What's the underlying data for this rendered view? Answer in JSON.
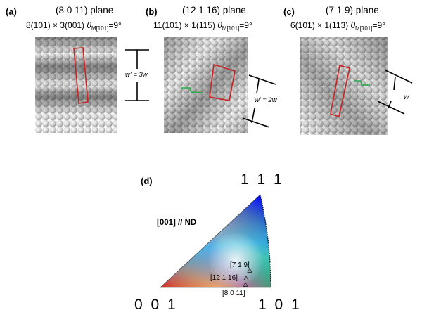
{
  "panels": [
    {
      "letter": "(a)",
      "title": "(8 0 11) plane",
      "eq_prefix": "8(101) × 3(001) ",
      "eq_theta": "θ",
      "eq_sub": "M[101]",
      "eq_angle": "=9°",
      "width_label": "w' = 3w"
    },
    {
      "letter": "(b)",
      "title": "(12 1 16) plane",
      "eq_prefix": "11(101) × 1(115) ",
      "eq_theta": "θ",
      "eq_sub": "M[101]",
      "eq_angle": "=9°",
      "width_label": "w' = 2w"
    },
    {
      "letter": "(c)",
      "title": "(7 1 9) plane",
      "eq_prefix": "6(101) × 1(113) ",
      "eq_theta": "θ",
      "eq_sub": "M[101]",
      "eq_angle": "=9°",
      "width_label": "w"
    }
  ],
  "triangle": {
    "letter": "(d)",
    "nd_label": "[001] // ND",
    "corner_001": "0 0 1",
    "corner_101": "1 0 1",
    "corner_111": "1 1 1",
    "points": [
      {
        "label": "[7 1 9]"
      },
      {
        "label": "[12 1 16]"
      },
      {
        "label": "[8 0 11]"
      }
    ]
  },
  "colors": {
    "outline": "#cc2222",
    "step": "#22aa44"
  }
}
